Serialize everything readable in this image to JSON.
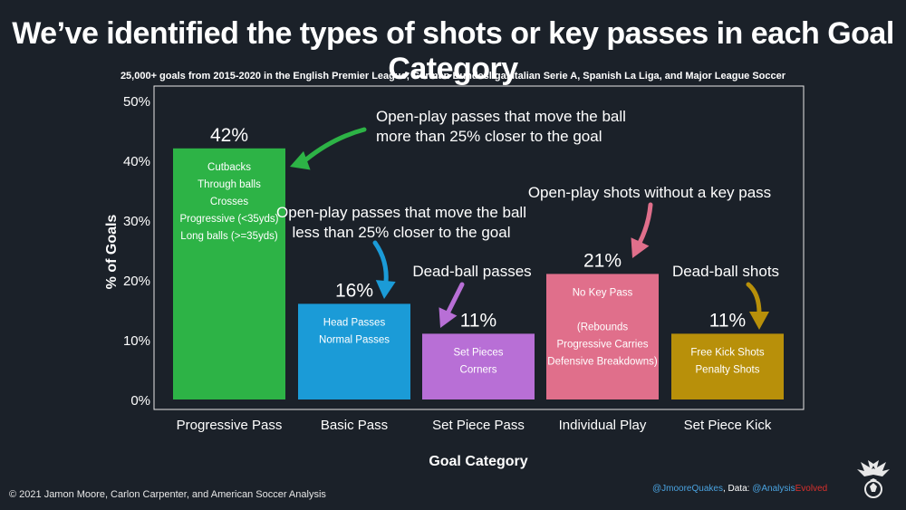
{
  "header": {
    "title": "We’ve identified the types of shots or key passes in each Goal Category",
    "subtitle": "25,000+ goals from 2015-2020 in the English Premier League, German Bundesliga, Italian Serie A, Spanish La Liga, and Major League Soccer"
  },
  "chart_data": {
    "type": "bar",
    "xlabel": "Goal Category",
    "ylabel": "% of Goals",
    "ylim": [
      0,
      50
    ],
    "yticks": [
      "0%",
      "10%",
      "20%",
      "30%",
      "40%",
      "50%"
    ],
    "grid": false,
    "categories": [
      "Progressive Pass",
      "Basic Pass",
      "Set Piece Pass",
      "Individual Play",
      "Set Piece Kick"
    ],
    "values": [
      42,
      16,
      11,
      21,
      11
    ],
    "value_labels": [
      "42%",
      "16%",
      "11%",
      "21%",
      "11%"
    ],
    "colors": [
      "#2db346",
      "#1b9bd7",
      "#b86fd6",
      "#e06f8b",
      "#b8900a"
    ],
    "bar_notes": [
      [
        "Cutbacks",
        "Through balls",
        "Crosses",
        "Progressive (<35yds)",
        "Long balls (>=35yds)"
      ],
      [
        "Head Passes",
        "Normal Passes"
      ],
      [
        "Set Pieces",
        "Corners"
      ],
      [
        "No Key Pass",
        "",
        "(Rebounds",
        "Progressive Carries",
        "Defensive Breakdowns)"
      ],
      [
        "Free Kick Shots",
        "Penalty Shots"
      ]
    ],
    "annotations": [
      {
        "lines": [
          "Open-play passes that move the ball",
          "more than 25% closer to the goal"
        ],
        "color": "#2db346"
      },
      {
        "lines": [
          "Open-play passes that move the ball",
          "less than 25% closer to the goal"
        ],
        "color": "#1b9bd7"
      },
      {
        "lines": [
          "Dead-ball passes"
        ],
        "color": "#b86fd6"
      },
      {
        "lines": [
          "Open-play shots without a key pass"
        ],
        "color": "#e06f8b"
      },
      {
        "lines": [
          "Dead-ball shots"
        ],
        "color": "#b8900a"
      }
    ]
  },
  "footer": {
    "copyright": "© 2021 Jamon Moore, Carlon Carpenter, and American Soccer Analysis",
    "credit_handle": "@JmooreQuakes",
    "credit_mid": ", Data: ",
    "credit_data_a": "@Analysis",
    "credit_data_b": "Evolved"
  }
}
